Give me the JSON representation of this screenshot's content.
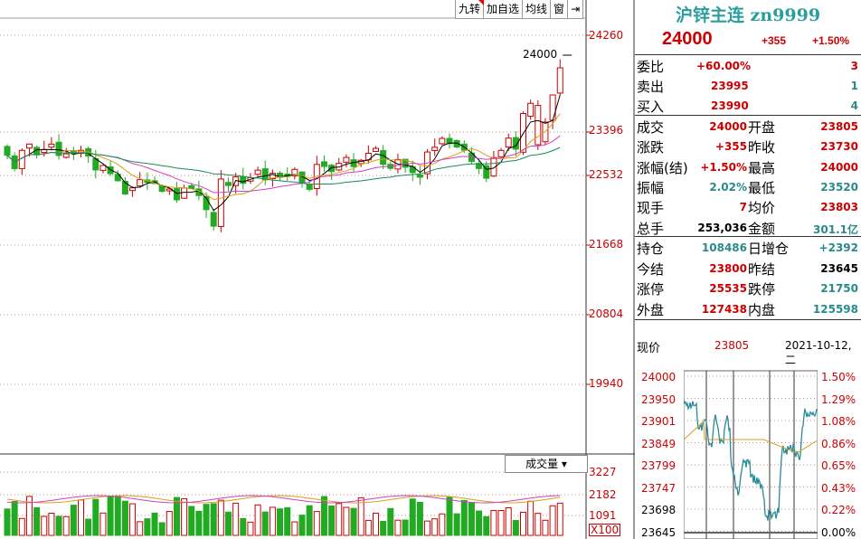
{
  "toolbar": {
    "items": [
      "九转",
      "加自选",
      "均线",
      "窗",
      "⇥"
    ]
  },
  "main_axis": {
    "labels": [
      "24260",
      "23396",
      "22532",
      "21668",
      "20804",
      "19940"
    ]
  },
  "last_price_tag": "24000",
  "volume": {
    "button": "成交量",
    "labels": [
      "3227",
      "2182",
      "1091"
    ],
    "unit": "X100"
  },
  "colors": {
    "up": "#cc0000",
    "down": "#22aa22",
    "teal": "#2a9d9d",
    "ma5": "#000000",
    "ma10": "#d4a017",
    "ma20": "#d040c0",
    "ma60": "#1a8a5a"
  },
  "quote": {
    "title": "沪锌主连 zn9999",
    "price": "24000",
    "change": "+355",
    "change_pct": "+1.50%",
    "rows_a": [
      {
        "k": "委比",
        "v": "+60.00%",
        "x": "3"
      },
      {
        "k": "卖出",
        "v": "23995",
        "x": "1"
      },
      {
        "k": "买入",
        "v": "23990",
        "x": "4"
      }
    ],
    "rows_b": [
      {
        "k1": "成交",
        "v1": "24000",
        "k2": "开盘",
        "v2": "23805"
      },
      {
        "k1": "涨跌",
        "v1": "+355",
        "k2": "昨收",
        "v2": "23730"
      },
      {
        "k1": "涨幅(结)",
        "v1": "+1.50%",
        "k2": "最高",
        "v2": "24000"
      },
      {
        "k1": "振幅",
        "v1": "2.02%",
        "k2": "最低",
        "v2": "23520"
      },
      {
        "k1": "现手",
        "v1": "7",
        "k2": "均价",
        "v2": "23803"
      },
      {
        "k1": "总手",
        "v1": "253,036",
        "k2": "金额",
        "v2": "301.1亿"
      }
    ],
    "rows_c": [
      {
        "k1": "持仓",
        "v1": "108486",
        "k2": "日增仓",
        "v2": "+2392"
      },
      {
        "k1": "今结",
        "v1": "23800",
        "k2": "昨结",
        "v2": "23645"
      },
      {
        "k1": "涨停",
        "v1": "25535",
        "k2": "跌停",
        "v2": "21750"
      },
      {
        "k1": "外盘",
        "v1": "127438",
        "k2": "内盘",
        "v2": "125598"
      }
    ],
    "cursor": {
      "label": "现价",
      "price": "23805",
      "date": "2021-10-12,二"
    }
  },
  "intraday": {
    "price_labels": [
      "24000",
      "23950",
      "23901",
      "23849",
      "23799",
      "23747",
      "23698",
      "23645"
    ],
    "pct_labels": [
      "1.50%",
      "1.29%",
      "1.08%",
      "0.86%",
      "0.65%",
      "0.43%",
      "0.22%",
      "0.00%"
    ]
  }
}
